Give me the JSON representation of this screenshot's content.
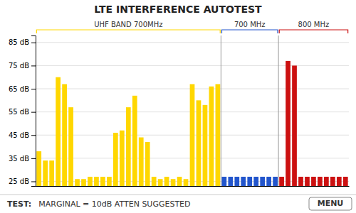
{
  "chart_data": {
    "type": "bar",
    "title": "LTE INTERFERENCE AUTOTEST",
    "categories": [
      null,
      null,
      null,
      null,
      null,
      null,
      null,
      null,
      null,
      null,
      null,
      null,
      null,
      null,
      null,
      null,
      null,
      null,
      null,
      null,
      null,
      null,
      null,
      null,
      null,
      null,
      null,
      null,
      null,
      null,
      null,
      null,
      null,
      null,
      null,
      null,
      null,
      null,
      null,
      null,
      null,
      null,
      null,
      null,
      null,
      null,
      null,
      null,
      null
    ],
    "series": [
      {
        "name": "UHF BAND 700MHz",
        "color": "#FFD700",
        "values": [
          38,
          34,
          34,
          70,
          67,
          57,
          26,
          26,
          27,
          27,
          27,
          27,
          46,
          47,
          57,
          62,
          44,
          42,
          27,
          26,
          27,
          26,
          27,
          26,
          67,
          60,
          58,
          66,
          67,
          null,
          null,
          null,
          null,
          null,
          null,
          null,
          null,
          null,
          null,
          null,
          null,
          null,
          null,
          null,
          null,
          null,
          null,
          null,
          null
        ]
      },
      {
        "name": "700 MHz",
        "color": "#2255cc",
        "values": [
          null,
          null,
          null,
          null,
          null,
          null,
          null,
          null,
          null,
          null,
          null,
          null,
          null,
          null,
          null,
          null,
          null,
          null,
          null,
          null,
          null,
          null,
          null,
          null,
          null,
          null,
          null,
          null,
          null,
          27,
          27,
          27,
          27,
          27,
          27,
          27,
          27,
          27,
          null,
          null,
          null,
          null,
          null,
          null,
          null,
          null,
          null,
          null,
          null
        ]
      },
      {
        "name": "800 MHz",
        "color": "#cc1111",
        "values": [
          null,
          null,
          null,
          null,
          null,
          null,
          null,
          null,
          null,
          null,
          null,
          null,
          null,
          null,
          null,
          null,
          null,
          null,
          null,
          null,
          null,
          null,
          null,
          null,
          null,
          null,
          null,
          null,
          null,
          null,
          null,
          null,
          null,
          null,
          null,
          null,
          null,
          null,
          27,
          77,
          75,
          27,
          27,
          27,
          27,
          27,
          27,
          27,
          27
        ]
      }
    ],
    "ylim": [
      23,
      88
    ],
    "yticks": [
      {
        "value": 25,
        "label": "25 dB"
      },
      {
        "value": 35,
        "label": "35 dB"
      },
      {
        "value": 45,
        "label": "45 dB"
      },
      {
        "value": 55,
        "label": "55 dB"
      },
      {
        "value": 65,
        "label": "65 dB"
      },
      {
        "value": 75,
        "label": "75 dB"
      },
      {
        "value": 85,
        "label": "85 dB"
      }
    ],
    "grid": true,
    "annotations": [
      "TEST:",
      "MARGINAL = 10dB ATTEN SUGGESTED",
      "MENU"
    ]
  }
}
